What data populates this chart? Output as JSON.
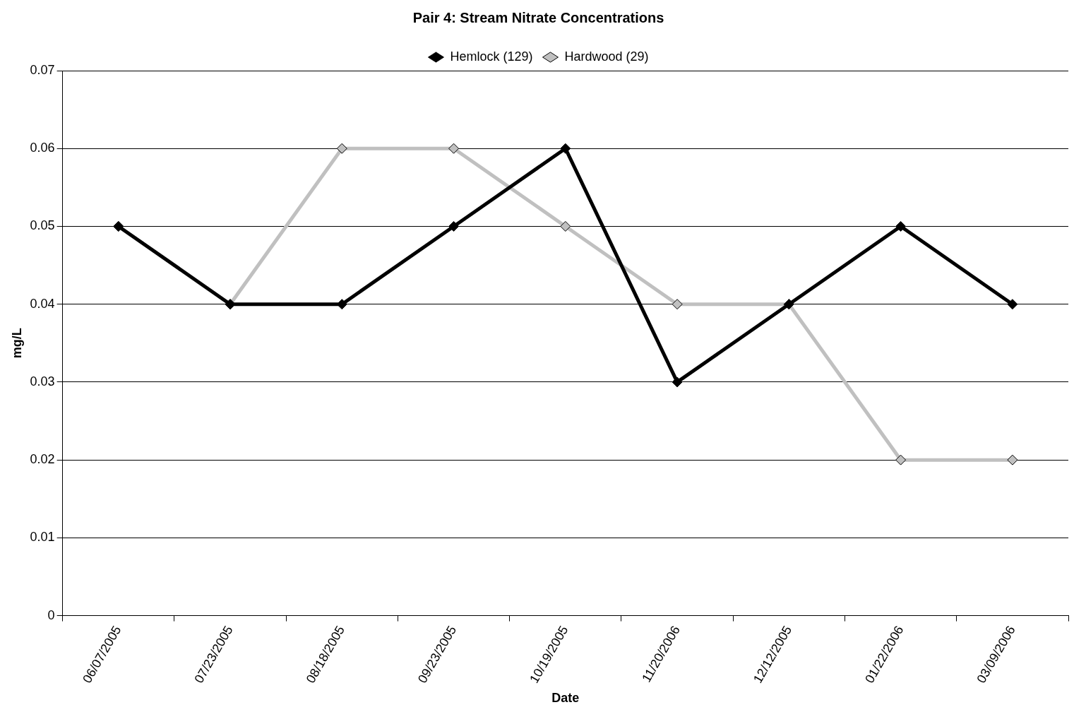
{
  "chart_data": {
    "type": "line",
    "title": "Pair 4: Stream Nitrate Concentrations",
    "xlabel": "Date",
    "ylabel": "mg/L",
    "categories": [
      "06/07/2005",
      "07/23/2005",
      "08/18/2005",
      "09/23/2005",
      "10/19/2005",
      "11/20/2006",
      "12/12/2005",
      "01/22/2006",
      "03/09/2006"
    ],
    "series": [
      {
        "name": "Hemlock (129)",
        "color": "#000000",
        "values": [
          0.05,
          0.04,
          0.04,
          0.05,
          0.06,
          0.03,
          0.04,
          0.05,
          0.04
        ]
      },
      {
        "name": "Hardwood (29)",
        "color": "#c0c0c0",
        "values": [
          0.05,
          0.04,
          0.06,
          0.06,
          0.05,
          0.04,
          0.04,
          0.02,
          0.02
        ]
      }
    ],
    "ylim": [
      0,
      0.07
    ],
    "yticks": [
      0,
      0.01,
      0.02,
      0.03,
      0.04,
      0.05,
      0.06,
      0.07
    ],
    "grid": "y",
    "legend": "top",
    "marker": "diamond",
    "line_style": "solid"
  }
}
